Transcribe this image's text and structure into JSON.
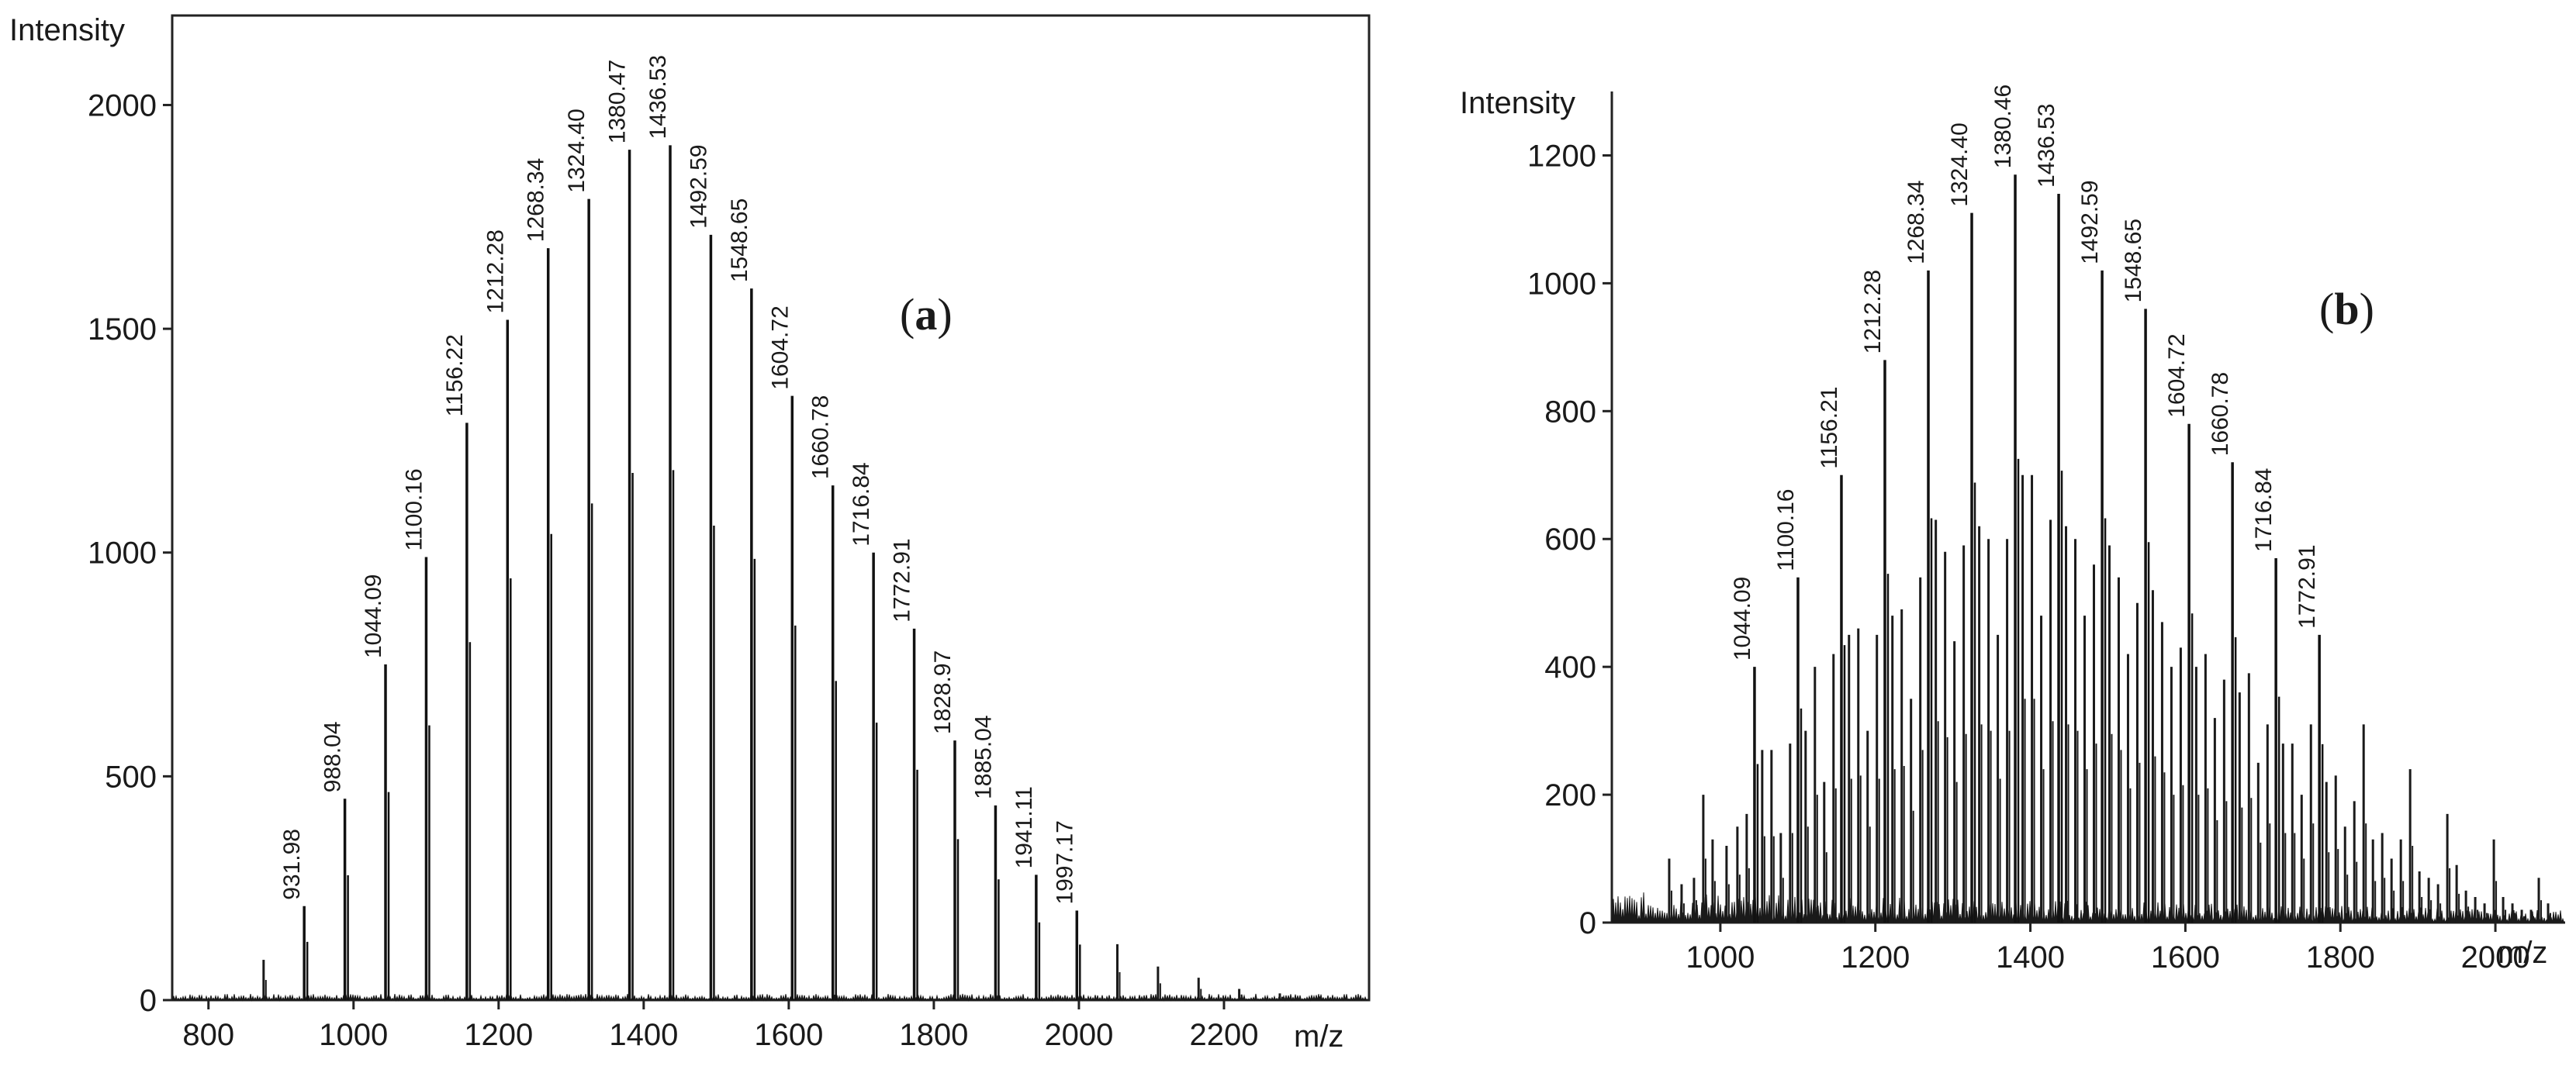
{
  "chart_data": [
    {
      "type": "bar",
      "panel_label": "a",
      "panel_open": "(",
      "panel_close": ")",
      "title": "",
      "ylabel": "Intensity",
      "xlabel": "m/z",
      "xlim": [
        750,
        2400
      ],
      "ylim": [
        0,
        2200
      ],
      "xticks": [
        800,
        1000,
        1200,
        1400,
        1600,
        1800,
        2000,
        2200
      ],
      "yticks": [
        0,
        500,
        1000,
        1500,
        2000
      ],
      "labeled_peaks": [
        {
          "x": 931.98,
          "y": 210,
          "label": "931.98"
        },
        {
          "x": 988.04,
          "y": 450,
          "label": "988.04"
        },
        {
          "x": 1044.09,
          "y": 750,
          "label": "1044.09"
        },
        {
          "x": 1100.16,
          "y": 990,
          "label": "1100.16"
        },
        {
          "x": 1156.22,
          "y": 1290,
          "label": "1156.22"
        },
        {
          "x": 1212.28,
          "y": 1520,
          "label": "1212.28"
        },
        {
          "x": 1268.34,
          "y": 1680,
          "label": "1268.34"
        },
        {
          "x": 1324.4,
          "y": 1790,
          "label": "1324.40"
        },
        {
          "x": 1380.47,
          "y": 1900,
          "label": "1380.47"
        },
        {
          "x": 1436.53,
          "y": 1910,
          "label": "1436.53"
        },
        {
          "x": 1492.59,
          "y": 1710,
          "label": "1492.59"
        },
        {
          "x": 1548.65,
          "y": 1590,
          "label": "1548.65"
        },
        {
          "x": 1604.72,
          "y": 1350,
          "label": "1604.72"
        },
        {
          "x": 1660.78,
          "y": 1150,
          "label": "1660.78"
        },
        {
          "x": 1716.84,
          "y": 1000,
          "label": "1716.84"
        },
        {
          "x": 1772.91,
          "y": 830,
          "label": "1772.91"
        },
        {
          "x": 1828.97,
          "y": 580,
          "label": "1828.97"
        },
        {
          "x": 1885.04,
          "y": 435,
          "label": "1885.04"
        },
        {
          "x": 1941.11,
          "y": 280,
          "label": "1941.11"
        },
        {
          "x": 1997.17,
          "y": 200,
          "label": "1997.17"
        }
      ],
      "minor_peaks": [
        {
          "x": 876,
          "y": 90
        },
        {
          "x": 2053,
          "y": 125
        },
        {
          "x": 2109,
          "y": 75
        },
        {
          "x": 2165,
          "y": 50
        },
        {
          "x": 2221,
          "y": 25
        },
        {
          "x": 2277,
          "y": 15
        },
        {
          "x": 2333,
          "y": 8
        }
      ]
    },
    {
      "type": "bar",
      "panel_label": "b",
      "panel_open": "(",
      "panel_close": ")",
      "title": "",
      "ylabel": "Intensity",
      "xlabel": "m/z",
      "xlim": [
        860,
        2090
      ],
      "ylim": [
        0,
        1300
      ],
      "xticks": [
        1000,
        1200,
        1400,
        1600,
        1800,
        2000
      ],
      "yticks": [
        0,
        200,
        400,
        600,
        800,
        1000,
        1200
      ],
      "labeled_peaks": [
        {
          "x": 1044.09,
          "y": 400,
          "label": "1044.09"
        },
        {
          "x": 1100.16,
          "y": 540,
          "label": "1100.16"
        },
        {
          "x": 1156.21,
          "y": 700,
          "label": "1156.21"
        },
        {
          "x": 1212.28,
          "y": 880,
          "label": "1212.28"
        },
        {
          "x": 1268.34,
          "y": 1020,
          "label": "1268.34"
        },
        {
          "x": 1324.4,
          "y": 1110,
          "label": "1324.40"
        },
        {
          "x": 1380.46,
          "y": 1170,
          "label": "1380.46"
        },
        {
          "x": 1436.53,
          "y": 1140,
          "label": "1436.53"
        },
        {
          "x": 1492.59,
          "y": 1020,
          "label": "1492.59"
        },
        {
          "x": 1548.65,
          "y": 960,
          "label": "1548.65"
        },
        {
          "x": 1604.72,
          "y": 780,
          "label": "1604.72"
        },
        {
          "x": 1660.78,
          "y": 720,
          "label": "1660.78"
        },
        {
          "x": 1716.84,
          "y": 570,
          "label": "1716.84"
        },
        {
          "x": 1772.91,
          "y": 450,
          "label": "1772.91"
        }
      ],
      "minor_peaks": [
        {
          "x": 934,
          "y": 100
        },
        {
          "x": 950,
          "y": 60
        },
        {
          "x": 966,
          "y": 70
        },
        {
          "x": 978,
          "y": 200
        },
        {
          "x": 990,
          "y": 130
        },
        {
          "x": 1008,
          "y": 120
        },
        {
          "x": 1022,
          "y": 150
        },
        {
          "x": 1034,
          "y": 170
        },
        {
          "x": 1054,
          "y": 270
        },
        {
          "x": 1066,
          "y": 270
        },
        {
          "x": 1078,
          "y": 140
        },
        {
          "x": 1090,
          "y": 280
        },
        {
          "x": 1110,
          "y": 300
        },
        {
          "x": 1122,
          "y": 400
        },
        {
          "x": 1134,
          "y": 220
        },
        {
          "x": 1146,
          "y": 420
        },
        {
          "x": 1166,
          "y": 450
        },
        {
          "x": 1178,
          "y": 460
        },
        {
          "x": 1190,
          "y": 300
        },
        {
          "x": 1202,
          "y": 450
        },
        {
          "x": 1222,
          "y": 480
        },
        {
          "x": 1234,
          "y": 490
        },
        {
          "x": 1246,
          "y": 350
        },
        {
          "x": 1258,
          "y": 540
        },
        {
          "x": 1278,
          "y": 630
        },
        {
          "x": 1290,
          "y": 580
        },
        {
          "x": 1302,
          "y": 440
        },
        {
          "x": 1314,
          "y": 590
        },
        {
          "x": 1334,
          "y": 620
        },
        {
          "x": 1346,
          "y": 600
        },
        {
          "x": 1358,
          "y": 450
        },
        {
          "x": 1370,
          "y": 600
        },
        {
          "x": 1390,
          "y": 700
        },
        {
          "x": 1402,
          "y": 700
        },
        {
          "x": 1414,
          "y": 480
        },
        {
          "x": 1426,
          "y": 630
        },
        {
          "x": 1446,
          "y": 620
        },
        {
          "x": 1458,
          "y": 600
        },
        {
          "x": 1470,
          "y": 480
        },
        {
          "x": 1482,
          "y": 560
        },
        {
          "x": 1502,
          "y": 590
        },
        {
          "x": 1514,
          "y": 540
        },
        {
          "x": 1526,
          "y": 420
        },
        {
          "x": 1538,
          "y": 500
        },
        {
          "x": 1558,
          "y": 520
        },
        {
          "x": 1570,
          "y": 470
        },
        {
          "x": 1582,
          "y": 400
        },
        {
          "x": 1594,
          "y": 430
        },
        {
          "x": 1614,
          "y": 400
        },
        {
          "x": 1626,
          "y": 420
        },
        {
          "x": 1638,
          "y": 320
        },
        {
          "x": 1650,
          "y": 380
        },
        {
          "x": 1670,
          "y": 360
        },
        {
          "x": 1682,
          "y": 390
        },
        {
          "x": 1694,
          "y": 250
        },
        {
          "x": 1706,
          "y": 310
        },
        {
          "x": 1726,
          "y": 280
        },
        {
          "x": 1738,
          "y": 280
        },
        {
          "x": 1750,
          "y": 200
        },
        {
          "x": 1762,
          "y": 310
        },
        {
          "x": 1782,
          "y": 220
        },
        {
          "x": 1794,
          "y": 230
        },
        {
          "x": 1806,
          "y": 150
        },
        {
          "x": 1818,
          "y": 190
        },
        {
          "x": 1830,
          "y": 310
        },
        {
          "x": 1842,
          "y": 130
        },
        {
          "x": 1854,
          "y": 140
        },
        {
          "x": 1866,
          "y": 100
        },
        {
          "x": 1878,
          "y": 130
        },
        {
          "x": 1890,
          "y": 240
        },
        {
          "x": 1902,
          "y": 80
        },
        {
          "x": 1914,
          "y": 70
        },
        {
          "x": 1926,
          "y": 60
        },
        {
          "x": 1938,
          "y": 170
        },
        {
          "x": 1950,
          "y": 90
        },
        {
          "x": 1962,
          "y": 50
        },
        {
          "x": 1974,
          "y": 40
        },
        {
          "x": 1986,
          "y": 30
        },
        {
          "x": 1998,
          "y": 130
        },
        {
          "x": 2010,
          "y": 40
        },
        {
          "x": 2022,
          "y": 30
        },
        {
          "x": 2034,
          "y": 20
        },
        {
          "x": 2046,
          "y": 20
        },
        {
          "x": 2056,
          "y": 70
        },
        {
          "x": 2068,
          "y": 30
        }
      ]
    }
  ]
}
